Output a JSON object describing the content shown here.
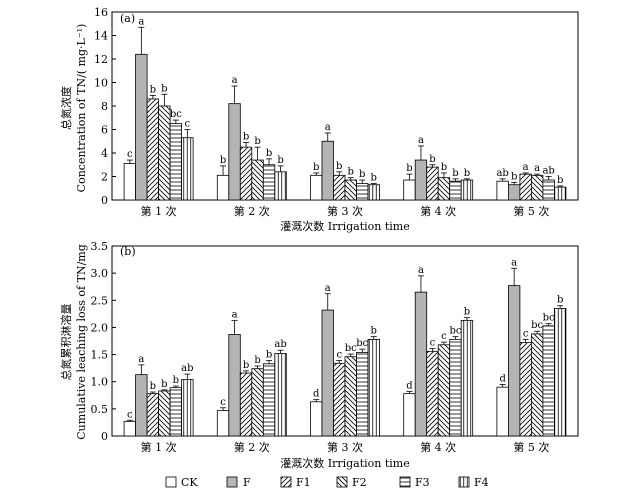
{
  "chart_data": [
    {
      "type": "bar",
      "panel_label": "(a)",
      "ylabel_cn": "总氮浓度",
      "ylabel_en": "Concentration of TN/( mg·L⁻¹)",
      "xlabel": "灌溉次数 Irrigation time",
      "categories": [
        "第 1 次",
        "第 2 次",
        "第 3 次",
        "第 4 次",
        "第 5 次"
      ],
      "ylim": [
        0,
        16
      ],
      "yticks": [
        "0",
        "2",
        "4",
        "6",
        "8",
        "10",
        "12",
        "14",
        "16"
      ],
      "series": [
        {
          "name": "CK",
          "values": [
            3.1,
            2.1,
            2.1,
            1.7,
            1.6
          ],
          "errors": [
            0.3,
            0.8,
            0.2,
            0.5,
            0.2
          ],
          "labels": [
            "c",
            "b",
            "b",
            "b",
            "ab"
          ]
        },
        {
          "name": "F",
          "values": [
            12.4,
            8.2,
            5.0,
            3.4,
            1.3
          ],
          "errors": [
            2.3,
            1.5,
            0.7,
            1.2,
            0.2
          ],
          "labels": [
            "a",
            "a",
            "a",
            "a",
            "b"
          ]
        },
        {
          "name": "F1",
          "values": [
            8.6,
            4.5,
            2.1,
            2.8,
            2.2
          ],
          "errors": [
            0.3,
            0.4,
            0.3,
            0.2,
            0.1
          ],
          "labels": [
            "b",
            "b",
            "b",
            "b",
            "a"
          ]
        },
        {
          "name": "F2",
          "values": [
            8.0,
            3.4,
            1.7,
            1.9,
            2.1
          ],
          "errors": [
            1.0,
            1.1,
            0.2,
            0.4,
            0.1
          ],
          "labels": [
            "b",
            "b",
            "b",
            "b",
            "a"
          ]
        },
        {
          "name": "F3",
          "values": [
            6.5,
            3.0,
            1.4,
            1.6,
            1.7
          ],
          "errors": [
            0.3,
            0.5,
            0.3,
            0.2,
            0.3
          ],
          "labels": [
            "bc",
            "b",
            "b",
            "b",
            "ab"
          ]
        },
        {
          "name": "F4",
          "values": [
            5.3,
            2.4,
            1.3,
            1.7,
            1.1
          ],
          "errors": [
            0.7,
            0.5,
            0.1,
            0.1,
            0.1
          ],
          "labels": [
            "c",
            "b",
            "b",
            "b",
            "b"
          ]
        }
      ]
    },
    {
      "type": "bar",
      "panel_label": "(b)",
      "ylabel_cn": "总氮累积淋溶量",
      "ylabel_en": "Cumulative leaching loss of TN/mg",
      "xlabel": "灌溉次数 Irrigation time",
      "categories": [
        "第 1 次",
        "第 2 次",
        "第 3 次",
        "第 4 次",
        "第 5 次"
      ],
      "ylim": [
        0,
        3.5
      ],
      "yticks": [
        "0",
        "0.5",
        "1.0",
        "1.5",
        "2.0",
        "2.5",
        "3.0",
        "3.5"
      ],
      "series": [
        {
          "name": "CK",
          "values": [
            0.27,
            0.47,
            0.63,
            0.78,
            0.9
          ],
          "errors": [
            0.02,
            0.05,
            0.04,
            0.04,
            0.05
          ],
          "labels": [
            "c",
            "c",
            "d",
            "d",
            "d"
          ]
        },
        {
          "name": "F",
          "values": [
            1.13,
            1.87,
            2.32,
            2.65,
            2.77
          ],
          "errors": [
            0.18,
            0.26,
            0.3,
            0.3,
            0.32
          ],
          "labels": [
            "a",
            "a",
            "a",
            "a",
            "a"
          ]
        },
        {
          "name": "F1",
          "values": [
            0.78,
            1.16,
            1.34,
            1.56,
            1.72
          ],
          "errors": [
            0.03,
            0.04,
            0.05,
            0.05,
            0.06
          ],
          "labels": [
            "b",
            "b",
            "c",
            "c",
            "c"
          ]
        },
        {
          "name": "F2",
          "values": [
            0.83,
            1.24,
            1.46,
            1.68,
            1.88
          ],
          "errors": [
            0.02,
            0.05,
            0.05,
            0.05,
            0.05
          ],
          "labels": [
            "b",
            "b",
            "bc",
            "c",
            "bc"
          ]
        },
        {
          "name": "F3",
          "values": [
            0.89,
            1.33,
            1.54,
            1.78,
            2.03
          ],
          "errors": [
            0.03,
            0.06,
            0.06,
            0.05,
            0.04
          ],
          "labels": [
            "b",
            "b",
            "bc",
            "bc",
            "bc"
          ]
        },
        {
          "name": "F4",
          "values": [
            1.04,
            1.52,
            1.78,
            2.13,
            2.35
          ],
          "errors": [
            0.1,
            0.06,
            0.05,
            0.05,
            0.05
          ],
          "labels": [
            "ab",
            "ab",
            "b",
            "b",
            "b"
          ]
        }
      ]
    }
  ],
  "legend": [
    "CK",
    "F",
    "F1",
    "F2",
    "F3",
    "F4"
  ],
  "colors": {
    "F": "#b4b4b4",
    "CK": "#ffffff",
    "stroke": "#000000"
  }
}
